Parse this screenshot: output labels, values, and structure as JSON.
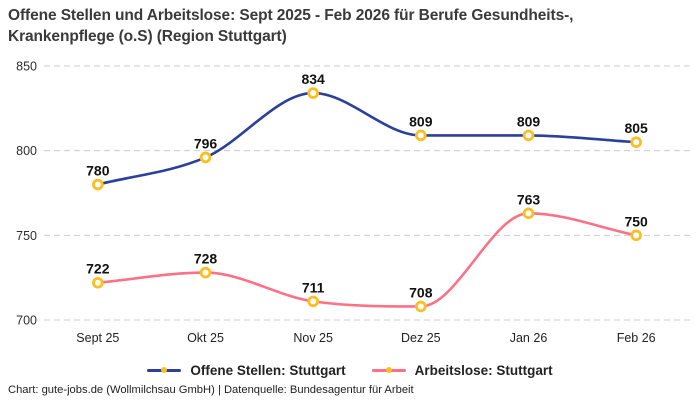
{
  "header": {
    "title": "Offene Stellen und Arbeitslose: Sept 2025 - Feb 2026 für Berufe Gesundheits-, Krankenpflege (o.S) (Region Stuttgart)"
  },
  "colors": {
    "marker_ring": "#fbbf24",
    "marker_fill": "#ffffff",
    "grid": "#cccccc",
    "title_text": "#3a3a3a",
    "label_text": "#121212"
  },
  "chart_data": {
    "type": "line",
    "title": "Offene Stellen und Arbeitslose: Sept 2025 - Feb 2026 für Berufe Gesundheits-, Krankenpflege (o.S) (Region Stuttgart)",
    "categories": [
      "Sept 25",
      "Okt 25",
      "Nov 25",
      "Dez 25",
      "Jan 26",
      "Feb 26"
    ],
    "series": [
      {
        "name": "Offene Stellen: Stuttgart",
        "color": "#2b3f9b",
        "values": [
          780,
          796,
          834,
          809,
          809,
          805
        ]
      },
      {
        "name": "Arbeitslose: Stuttgart",
        "color": "#fb7185",
        "values": [
          722,
          728,
          711,
          708,
          763,
          750
        ]
      }
    ],
    "xlabel": "",
    "ylabel": "",
    "yticks": [
      700,
      750,
      800,
      850
    ],
    "ylim": [
      700,
      850
    ],
    "grid": "horizontal-dashed",
    "legend_position": "bottom",
    "curve": "smooth-monotone"
  },
  "footer": {
    "credit": "Chart: gute-jobs.de (Wollmilchsau GmbH) | Datenquelle: Bundesagentur für Arbeit"
  }
}
